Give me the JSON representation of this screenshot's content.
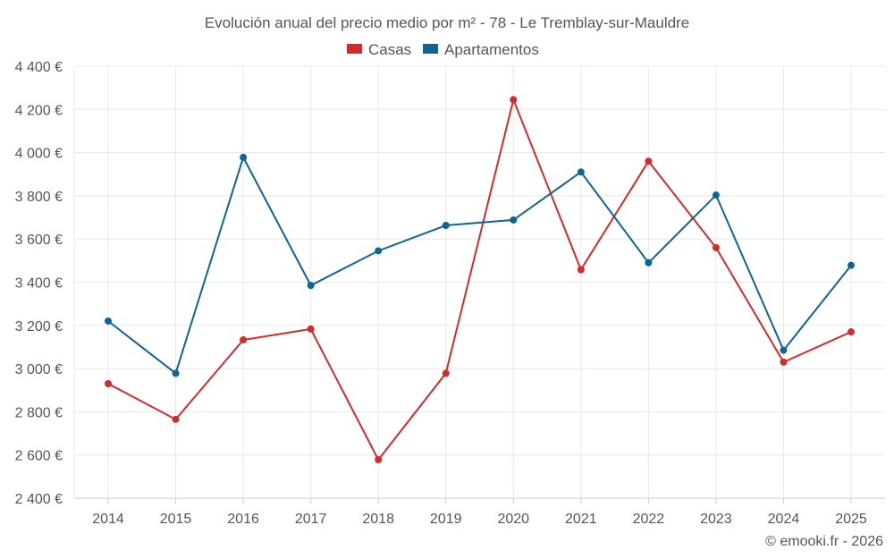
{
  "chart_data": {
    "type": "line",
    "title": "Evolución anual del precio medio por m² - 78 - Le Tremblay-sur-Mauldre",
    "xlabel": "",
    "ylabel": "",
    "categories": [
      "2014",
      "2015",
      "2016",
      "2017",
      "2018",
      "2019",
      "2020",
      "2021",
      "2022",
      "2023",
      "2024",
      "2025"
    ],
    "ylim": [
      2400,
      4400
    ],
    "yticks": [
      2400,
      2600,
      2800,
      3000,
      3200,
      3400,
      3600,
      3800,
      4000,
      4200,
      4400
    ],
    "ytick_labels": [
      "2 400 €",
      "2 600 €",
      "2 800 €",
      "3 000 €",
      "3 200 €",
      "3 400 €",
      "3 600 €",
      "3 800 €",
      "4 000 €",
      "4 200 €",
      "4 400 €"
    ],
    "grid": true,
    "legend_position": "top-center",
    "series": [
      {
        "name": "Casas",
        "color": "#d32a2a",
        "values": [
          2930,
          2765,
          3133,
          3183,
          2578,
          2978,
          4245,
          3458,
          3960,
          3560,
          3030,
          3170
        ]
      },
      {
        "name": "Apartamentos",
        "color": "#0e6494",
        "values": [
          3220,
          2978,
          3978,
          3385,
          3545,
          3663,
          3688,
          3910,
          3490,
          3803,
          3085,
          3478
        ]
      }
    ],
    "credit": "© emooki.fr - 2026"
  }
}
